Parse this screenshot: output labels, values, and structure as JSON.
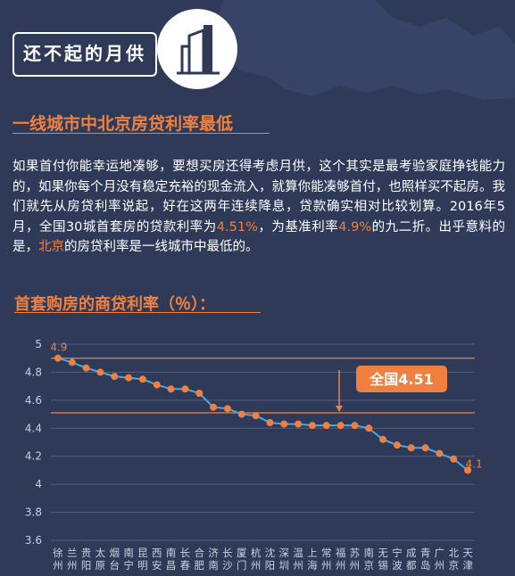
{
  "header": {
    "title": "还不起的月供"
  },
  "section": {
    "heading": "一线城市中北京房贷利率最低",
    "paragraph": {
      "p1": "如果首付你能幸运地凑够，要想买房还得考虑月供，这个其实是最考验家庭挣钱能力的，如果你每个月没有稳定充裕的现金流入，就算你能凑够首付，也照样买不起房。我们就先从房贷利率说起，好在这两年连续降息，贷款确实相对比较划算。2016年5月，全国30城首套房的贷款利率为",
      "rate_avg": "4.51%",
      "p2": "，为基准利率",
      "rate_base": "4.9%",
      "p3": "的九二折。出乎意料的是，",
      "city_hl": "北京",
      "p4": "的房贷利率是一线城市中最低的。"
    }
  },
  "chart_title": "首套购房的商贷利率（％）：",
  "chart_data": {
    "type": "line",
    "categories": [
      "徐州",
      "兰州",
      "贵阳",
      "太原",
      "烟台",
      "南宁",
      "昆明",
      "西安",
      "南昌",
      "长春",
      "合肥",
      "济南",
      "长沙",
      "厦门",
      "杭州",
      "沈阳",
      "深圳",
      "温州",
      "上海",
      "常州",
      "福州",
      "苏州",
      "南京",
      "无锡",
      "宁波",
      "成都",
      "青岛",
      "广州",
      "北京",
      "天津"
    ],
    "values": [
      4.9,
      4.87,
      4.83,
      4.8,
      4.77,
      4.76,
      4.75,
      4.71,
      4.68,
      4.68,
      4.65,
      4.55,
      4.54,
      4.5,
      4.49,
      4.44,
      4.43,
      4.43,
      4.42,
      4.42,
      4.42,
      4.42,
      4.4,
      4.32,
      4.28,
      4.26,
      4.26,
      4.22,
      4.18,
      4.1
    ],
    "ylim": [
      3.6,
      5.0
    ],
    "yticks": [
      "3.6",
      "3.8",
      "4",
      "4.2",
      "4.4",
      "4.6",
      "4.8",
      "5"
    ],
    "grid": true,
    "reference_lines": [
      {
        "value": 4.9,
        "color": "#f08040"
      },
      {
        "value": 4.51,
        "color": "#f08040",
        "label": "全国4.51"
      }
    ],
    "point_labels": [
      {
        "index": 0,
        "text": "4.9"
      },
      {
        "index": 29,
        "text": "4.1"
      }
    ],
    "colors": {
      "line": "#4aa8e0",
      "point": "#f08040",
      "grid": "#52607e",
      "axis_text": "#c8d0e0",
      "callout_bg": "#f08040",
      "callout_text": "#ffffff"
    }
  }
}
